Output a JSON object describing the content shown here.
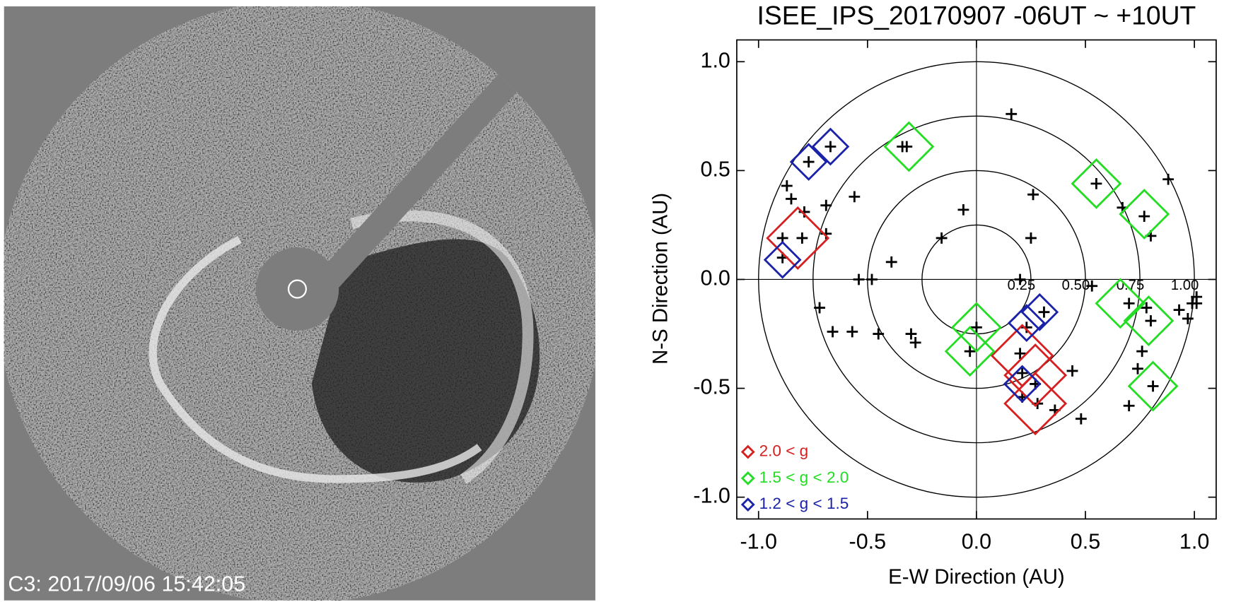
{
  "image": {
    "caption": "C3: 2017/09/06 15:42:05"
  },
  "chart_data": {
    "type": "scatter",
    "title": "ISEE_IPS_20170907 -06UT ~ +10UT",
    "xlabel": "E-W Direction (AU)",
    "ylabel": "N-S Direction (AU)",
    "xlim": [
      -1.1,
      1.1
    ],
    "ylim": [
      -1.1,
      1.1
    ],
    "xticks": [
      {
        "value": -1,
        "label": "-1.0"
      },
      {
        "value": -0.5,
        "label": "-0.5"
      },
      {
        "value": 0,
        "label": "0.0"
      },
      {
        "value": 0.5,
        "label": "0.5"
      },
      {
        "value": 1,
        "label": "1.0"
      }
    ],
    "yticks": [
      {
        "value": -1,
        "label": "-1.0"
      },
      {
        "value": -0.5,
        "label": "-0.5"
      },
      {
        "value": 0,
        "label": "0.0"
      },
      {
        "value": 0.5,
        "label": "0.5"
      },
      {
        "value": 1,
        "label": "1.0"
      }
    ],
    "rings": [
      {
        "value": 0.25,
        "label": "0.25"
      },
      {
        "value": 0.5,
        "label": "0.50"
      },
      {
        "value": 0.75,
        "label": "0.75"
      },
      {
        "value": 1,
        "label": "1.00"
      }
    ],
    "points": {
      "color": "#000000",
      "x": [
        0.16,
        -0.67,
        -0.77,
        -0.32,
        -0.34,
        -0.87,
        -0.85,
        -0.56,
        -0.79,
        -0.69,
        -0.69,
        -0.8,
        -0.89,
        -0.89,
        -0.16,
        -0.06,
        0.26,
        0.25,
        0.55,
        0.67,
        0.77,
        0.8,
        0.88,
        -0.39,
        -0.54,
        -0.48,
        -0.72,
        -0.66,
        -0.57,
        -0.45,
        -0.3,
        -0.28,
        0,
        -0.03,
        0.2,
        0.23,
        0.31,
        0.2,
        0.21,
        0.27,
        0.21,
        0.28,
        0.36,
        0.44,
        0.48,
        0.53,
        0.7,
        0.78,
        0.8,
        0.76,
        0.74,
        0.81,
        0.7,
        0.93,
        0.97,
        0.99,
        1.01,
        1.01
      ],
      "values": [
        0.76,
        0.61,
        0.54,
        0.61,
        0.61,
        0.43,
        0.37,
        0.38,
        0.31,
        0.34,
        0.21,
        0.19,
        0.19,
        0.1,
        0.19,
        0.32,
        0.39,
        0.19,
        0.44,
        0.33,
        0.29,
        0.2,
        0.46,
        0.08,
        0,
        0,
        -0.13,
        -0.24,
        -0.24,
        -0.25,
        -0.25,
        -0.29,
        -0.22,
        -0.33,
        0,
        -0.22,
        -0.15,
        -0.34,
        -0.43,
        -0.48,
        -0.54,
        -0.57,
        -0.6,
        -0.42,
        -0.64,
        -0.03,
        -0.11,
        -0.13,
        -0.19,
        -0.33,
        -0.41,
        -0.49,
        -0.58,
        -0.14,
        -0.18,
        -0.11,
        -0.08,
        -0.11
      ]
    },
    "series": [
      {
        "name": "2.0 < g",
        "color": "#d42020",
        "x": [
          -0.82,
          0.21,
          0.27,
          0.27
        ],
        "values": [
          0.19,
          -0.35,
          -0.44,
          -0.57
        ]
      },
      {
        "name": "1.5 < g < 2.0",
        "color": "#22dd22",
        "x": [
          -0.31,
          0.55,
          0.77,
          0,
          -0.03,
          0.66,
          0.79,
          0.81
        ],
        "values": [
          0.61,
          0.44,
          0.3,
          -0.22,
          -0.33,
          -0.11,
          -0.19,
          -0.49
        ]
      },
      {
        "name": "1.2 < g < 1.5",
        "color": "#1a22a8",
        "x": [
          -0.67,
          -0.77,
          -0.89,
          0.23,
          0.29,
          0.21
        ],
        "values": [
          0.61,
          0.54,
          0.09,
          -0.2,
          -0.15,
          -0.48
        ]
      }
    ],
    "legend": "lower left"
  }
}
